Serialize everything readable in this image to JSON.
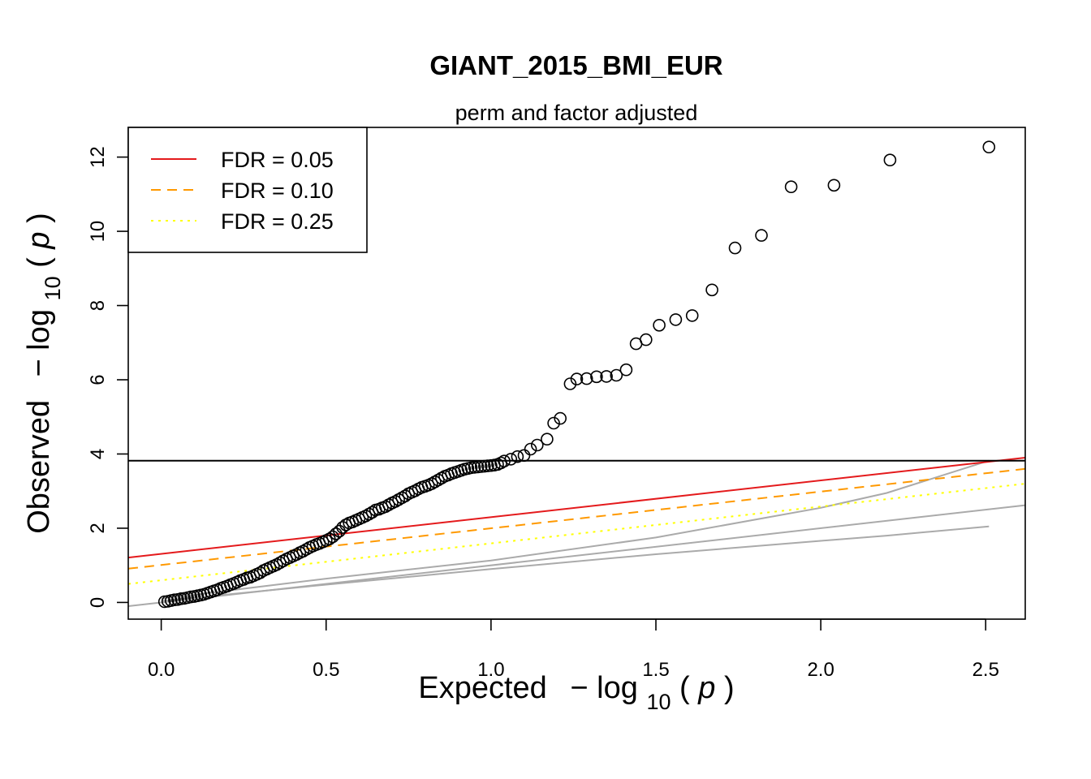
{
  "chart_data": {
    "type": "scatter",
    "title": "GIANT_2015_BMI_EUR",
    "subtitle": "perm and factor adjusted",
    "xlabel": {
      "prefix": "Expected",
      "func": "log",
      "sub": "10",
      "open": "(",
      "var": "p",
      "close": ")"
    },
    "ylabel": {
      "prefix": "Observed",
      "func": "log",
      "sub": "10",
      "open": "(",
      "var": "p",
      "close": ")"
    },
    "xlim": [
      -0.1,
      2.62
    ],
    "ylim": [
      -0.45,
      12.8
    ],
    "xticks": [
      "0.0",
      "0.5",
      "1.0",
      "1.5",
      "2.0",
      "2.5"
    ],
    "yticks": [
      "0",
      "2",
      "4",
      "6",
      "8",
      "10",
      "12"
    ],
    "grid": false,
    "legend": {
      "position": "top-left",
      "entries": [
        {
          "label": "FDR = 0.05",
          "color": "#e41a1c",
          "dash": "solid"
        },
        {
          "label": "FDR = 0.10",
          "color": "#ff9900",
          "dash": "dashed"
        },
        {
          "label": "FDR = 0.25",
          "color": "#ffff00",
          "dash": "dotted"
        }
      ]
    },
    "hline": {
      "y": 3.82,
      "color": "#000000"
    },
    "fdr_lines": [
      {
        "name": "FDR = 0.05",
        "x": [
          -0.1,
          2.62
        ],
        "y": [
          1.21,
          3.9
        ],
        "color": "#e41a1c",
        "dash": "solid"
      },
      {
        "name": "FDR = 0.10",
        "x": [
          -0.1,
          2.62
        ],
        "y": [
          0.91,
          3.6
        ],
        "color": "#ff9900",
        "dash": "dashed"
      },
      {
        "name": "FDR = 0.25",
        "x": [
          -0.1,
          2.62
        ],
        "y": [
          0.5,
          3.2
        ],
        "color": "#ffff00",
        "dash": "dotted"
      }
    ],
    "reference_lines": [
      {
        "x": [
          -0.1,
          2.62
        ],
        "y": [
          -0.1,
          2.62
        ],
        "color": "#aaaaaa"
      },
      {
        "x": [
          0,
          0.5,
          1.0,
          1.5,
          2.0,
          2.2,
          2.51
        ],
        "y": [
          0.04,
          0.48,
          0.9,
          1.3,
          1.66,
          1.8,
          2.05
        ],
        "color": "#aaaaaa"
      },
      {
        "x": [
          0,
          0.5,
          1.0,
          1.5,
          2.0,
          2.2,
          2.51
        ],
        "y": [
          0.1,
          0.64,
          1.13,
          1.75,
          2.55,
          2.95,
          3.82
        ],
        "color": "#aaaaaa"
      }
    ],
    "series": [
      {
        "x": [
          0.01,
          0.02,
          0.03,
          0.04,
          0.05,
          0.06,
          0.07,
          0.08,
          0.09,
          0.1,
          0.11,
          0.12,
          0.13,
          0.14,
          0.15,
          0.16,
          0.17,
          0.18,
          0.19,
          0.2,
          0.21,
          0.22,
          0.23,
          0.24,
          0.25,
          0.26,
          0.27,
          0.28,
          0.29,
          0.3,
          0.31,
          0.32,
          0.33,
          0.34,
          0.35,
          0.36,
          0.37,
          0.38,
          0.39,
          0.4,
          0.41,
          0.42,
          0.43,
          0.44,
          0.45,
          0.46,
          0.47,
          0.48,
          0.49,
          0.5,
          0.51,
          0.52,
          0.53,
          0.54,
          0.55,
          0.56,
          0.57,
          0.58,
          0.59,
          0.6,
          0.61,
          0.62,
          0.63,
          0.64,
          0.65,
          0.66,
          0.67,
          0.68,
          0.69,
          0.7,
          0.71,
          0.72,
          0.73,
          0.74,
          0.75,
          0.76,
          0.77,
          0.78,
          0.79,
          0.8,
          0.81,
          0.82,
          0.83,
          0.84,
          0.85,
          0.86,
          0.87,
          0.88,
          0.89,
          0.9,
          0.91,
          0.92,
          0.93,
          0.94,
          0.95,
          0.96,
          0.97,
          0.98,
          0.99,
          1.0,
          1.01,
          1.02,
          1.03,
          1.04,
          1.06,
          1.08,
          1.1,
          1.12,
          1.14,
          1.17,
          1.19,
          1.21,
          1.24,
          1.26,
          1.29,
          1.32,
          1.35,
          1.38,
          1.41,
          1.44,
          1.47,
          1.51,
          1.56,
          1.61,
          1.67,
          1.74,
          1.82,
          1.91,
          2.04,
          2.21,
          2.51
        ],
        "y": [
          0.02,
          0.03,
          0.05,
          0.07,
          0.08,
          0.1,
          0.11,
          0.13,
          0.15,
          0.16,
          0.18,
          0.2,
          0.22,
          0.25,
          0.28,
          0.31,
          0.34,
          0.38,
          0.41,
          0.44,
          0.48,
          0.51,
          0.55,
          0.59,
          0.62,
          0.66,
          0.68,
          0.72,
          0.76,
          0.8,
          0.86,
          0.9,
          0.94,
          0.98,
          1.02,
          1.07,
          1.12,
          1.17,
          1.21,
          1.25,
          1.29,
          1.34,
          1.38,
          1.43,
          1.48,
          1.52,
          1.56,
          1.59,
          1.63,
          1.67,
          1.71,
          1.77,
          1.85,
          1.92,
          2.02,
          2.09,
          2.14,
          2.17,
          2.21,
          2.25,
          2.29,
          2.33,
          2.38,
          2.43,
          2.49,
          2.51,
          2.55,
          2.58,
          2.63,
          2.68,
          2.72,
          2.77,
          2.82,
          2.87,
          2.93,
          2.97,
          3.01,
          3.06,
          3.1,
          3.13,
          3.16,
          3.2,
          3.25,
          3.3,
          3.35,
          3.4,
          3.43,
          3.47,
          3.5,
          3.53,
          3.56,
          3.59,
          3.61,
          3.63,
          3.64,
          3.65,
          3.66,
          3.67,
          3.68,
          3.69,
          3.7,
          3.72,
          3.76,
          3.81,
          3.86,
          3.93,
          3.96,
          4.13,
          4.24,
          4.4,
          4.83,
          4.96,
          5.89,
          6.02,
          6.03,
          6.08,
          6.09,
          6.12,
          6.27,
          6.97,
          7.08,
          7.47,
          7.62,
          7.73,
          8.42,
          9.55,
          9.89,
          11.2,
          11.24,
          11.92,
          12.27
        ]
      }
    ]
  }
}
